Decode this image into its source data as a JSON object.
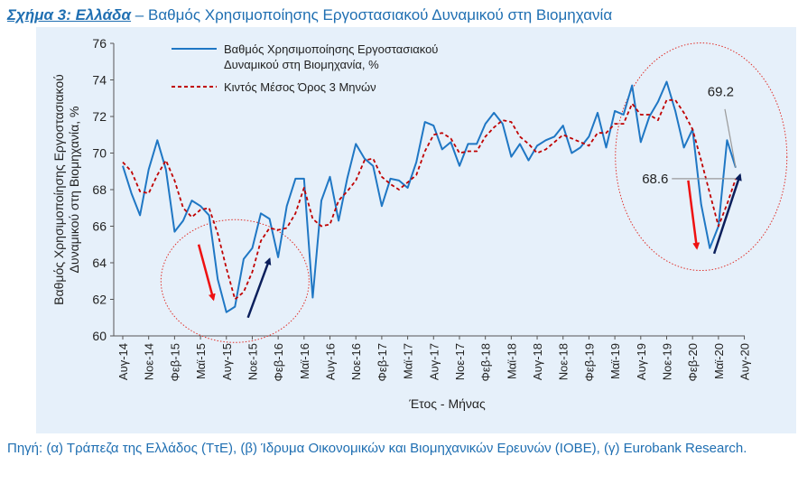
{
  "header": {
    "figure_label": "Σχήμα 3: Ελλάδα",
    "title": "– Βαθμός Χρησιμοποίησης Εργοστασιακού Δυναμικού στη Βιομηχανία"
  },
  "chart_data": {
    "type": "line",
    "xlabel": "Έτος - Μήνας",
    "ylabel_lines": [
      "Βαθμός Χρησιμοποίησης Εργοστασιακού",
      "Δυναμικού στη Βιομηχανία, %"
    ],
    "ylim": [
      60,
      76
    ],
    "yticks": [
      60,
      62,
      64,
      66,
      68,
      70,
      72,
      74,
      76
    ],
    "xticks": [
      "Αυγ-14",
      "Νοε-14",
      "Φεβ-15",
      "Μαϊ-15",
      "Αυγ-15",
      "Νοε-15",
      "Φεβ-16",
      "Μαϊ-16",
      "Αυγ-16",
      "Νοε-16",
      "Φεβ-17",
      "Μαϊ-17",
      "Αυγ-17",
      "Νοε-17",
      "Φεβ-18",
      "Μαϊ-18",
      "Αυγ-18",
      "Νοε-18",
      "Φεβ-19",
      "Μαϊ-19",
      "Αυγ-19",
      "Νοε-19",
      "Φεβ-20",
      "Μαϊ-20",
      "Αυγ-20"
    ],
    "grid": false,
    "legend_position": "top-left",
    "series": [
      {
        "name": "Βαθμός Χρησιμοποίησης Εργοστασιακού Δυναμικού στη Βιομηχανία, %",
        "legend_lines": [
          "Βαθμός Χρησιμοποίησης Εργοστασιακού",
          "Δυναμικού στη Βιομηχανία, %"
        ],
        "style": "solid",
        "color": "#1f77c4",
        "values": [
          69.3,
          67.8,
          66.6,
          69.1,
          70.7,
          69.1,
          65.7,
          66.3,
          67.4,
          67.1,
          66.6,
          63.1,
          61.3,
          61.6,
          64.2,
          64.8,
          66.7,
          66.4,
          64.3,
          67.1,
          68.6,
          68.6,
          62.1,
          67.4,
          68.7,
          66.3,
          68.6,
          70.5,
          69.7,
          69.3,
          67.1,
          68.6,
          68.5,
          68.1,
          69.5,
          71.7,
          71.5,
          70.2,
          70.6,
          69.3,
          70.5,
          70.5,
          71.6,
          72.2,
          71.6,
          69.8,
          70.5,
          69.6,
          70.4,
          70.7,
          70.9,
          71.5,
          70.0,
          70.3,
          70.9,
          72.2,
          70.3,
          72.3,
          72.1,
          73.7,
          70.6,
          72.0,
          72.8,
          73.9,
          72.3,
          70.3,
          71.3,
          67.2,
          64.8,
          66.0,
          70.7,
          69.2
        ]
      },
      {
        "name": "Κιντός Μέσος Όρος 3 Μηνών",
        "legend_lines": [
          "Κιντός Μέσος Όρος 3 Μηνών"
        ],
        "style": "dashed",
        "color": "#c00000",
        "values": [
          69.5,
          69.0,
          67.9,
          67.8,
          68.8,
          69.6,
          68.5,
          67.0,
          66.5,
          66.9,
          67.0,
          65.6,
          63.7,
          62.0,
          62.4,
          63.5,
          65.2,
          65.9,
          65.8,
          65.9,
          66.7,
          68.1,
          66.4,
          66.0,
          66.1,
          67.4,
          67.9,
          68.5,
          69.6,
          69.7,
          68.7,
          68.3,
          68.0,
          68.4,
          68.8,
          70.1,
          71.0,
          71.1,
          70.8,
          70.0,
          70.1,
          70.1,
          70.9,
          71.4,
          71.8,
          71.7,
          70.9,
          70.5,
          70.0,
          70.2,
          70.6,
          71.0,
          70.8,
          70.6,
          70.4,
          71.1,
          71.1,
          71.6,
          71.6,
          72.7,
          72.1,
          72.1,
          71.8,
          72.9,
          72.9,
          72.2,
          71.3,
          69.6,
          67.8,
          66.0,
          67.2,
          68.6
        ]
      }
    ],
    "annotations": [
      {
        "text": "69.2",
        "points_to_index": 71,
        "series": 0
      },
      {
        "text": "68.6",
        "points_to_index": 71,
        "series": 1
      }
    ]
  },
  "source": {
    "text": "Πηγή: (α) Τράπεζα της Ελλάδος (ΤτΕ), (β) Ίδρυμα Οικονομικών και Βιομηχανικών Ερευνών (ΙΟΒΕ), (γ) Eurobank Research."
  }
}
